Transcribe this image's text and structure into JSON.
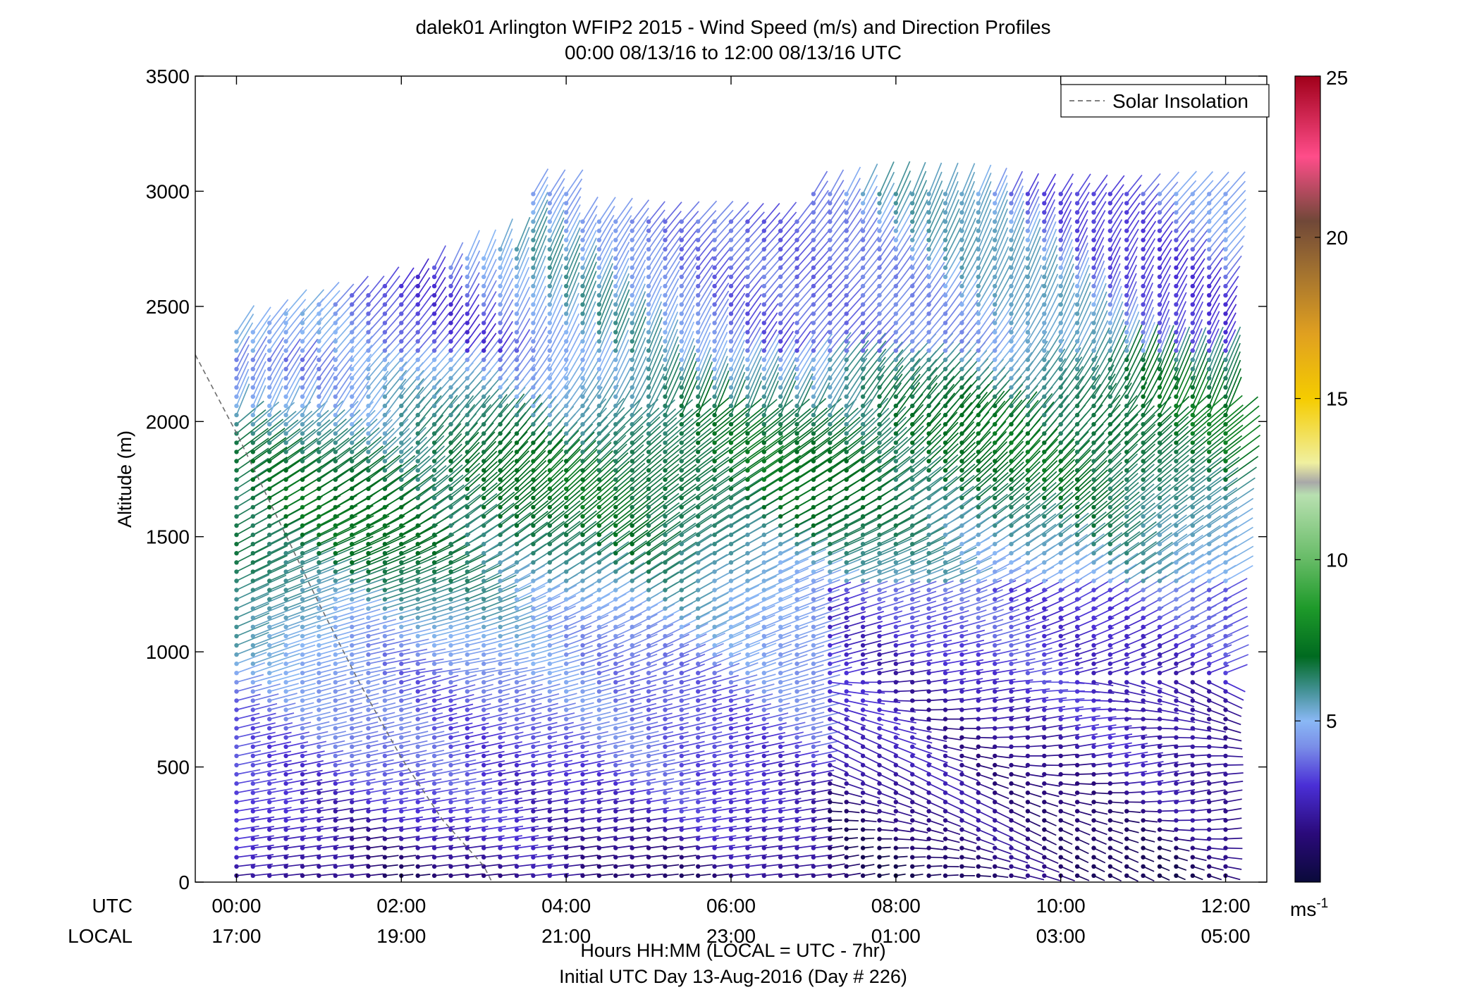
{
  "chart_data": {
    "type": "wind-barb-profile",
    "title_line1": "dalek01 Arlington WFIP2 2015 - Wind Speed (m/s) and Direction Profiles",
    "title_line2": "00:00 08/13/16 to 12:00 08/13/16  UTC",
    "ylabel": "Altitude (m)",
    "ylim": [
      0,
      3500
    ],
    "y_ticks": [
      0,
      500,
      1000,
      1500,
      2000,
      2500,
      3000,
      3500
    ],
    "y_tick_labels": [
      "0",
      "500",
      "1000",
      "1500",
      "2000",
      "2500",
      "3000",
      "3500"
    ],
    "x_hours_range": [
      -0.5,
      12.5
    ],
    "x_tick_hours": [
      0,
      2,
      4,
      6,
      8,
      10,
      12
    ],
    "utc_tick_labels": [
      "00:00",
      "02:00",
      "04:00",
      "06:00",
      "08:00",
      "10:00",
      "12:00"
    ],
    "local_tick_labels": [
      "17:00",
      "19:00",
      "21:00",
      "23:00",
      "01:00",
      "03:00",
      "05:00"
    ],
    "row_label_utc": "UTC",
    "row_label_local": "LOCAL",
    "xlabel_line1": "Hours HH:MM  (LOCAL = UTC - 7hr)",
    "xlabel_line2": "Initial UTC Day 13-Aug-2016 (Day # 226)",
    "legend": {
      "entries": [
        "Solar Insolation"
      ],
      "placement": "top-right"
    },
    "solar_insolation": {
      "hours": [
        -0.5,
        0.0,
        0.5,
        1.0,
        1.5,
        2.0,
        2.5,
        3.0,
        3.1
      ],
      "altitude": [
        2290,
        1950,
        1580,
        1210,
        860,
        540,
        270,
        70,
        0
      ]
    },
    "colorbar": {
      "range": [
        0,
        25
      ],
      "ticks": [
        5,
        10,
        15,
        20,
        25
      ],
      "tick_labels": [
        "5",
        "10",
        "15",
        "20",
        "25"
      ],
      "unit": "ms",
      "unit_exponent": "-1",
      "stops": [
        {
          "v": 0,
          "c": "#0a0a3a"
        },
        {
          "v": 1.5,
          "c": "#2a0a7a"
        },
        {
          "v": 3,
          "c": "#4a2fd6"
        },
        {
          "v": 4.2,
          "c": "#7a8ee8"
        },
        {
          "v": 5,
          "c": "#8ab8f5"
        },
        {
          "v": 6,
          "c": "#3f8f8f"
        },
        {
          "v": 7,
          "c": "#006a20"
        },
        {
          "v": 8.5,
          "c": "#1e9a2a"
        },
        {
          "v": 10,
          "c": "#66bb66"
        },
        {
          "v": 12,
          "c": "#b8e0b0"
        },
        {
          "v": 12.4,
          "c": "#a8a8a8"
        },
        {
          "v": 13,
          "c": "#f0f0a0"
        },
        {
          "v": 15,
          "c": "#f5cc00"
        },
        {
          "v": 17,
          "c": "#e0a020"
        },
        {
          "v": 19,
          "c": "#a07030"
        },
        {
          "v": 20.5,
          "c": "#704838"
        },
        {
          "v": 22.5,
          "c": "#ff4d8a"
        },
        {
          "v": 25,
          "c": "#a0001a"
        }
      ]
    }
  }
}
